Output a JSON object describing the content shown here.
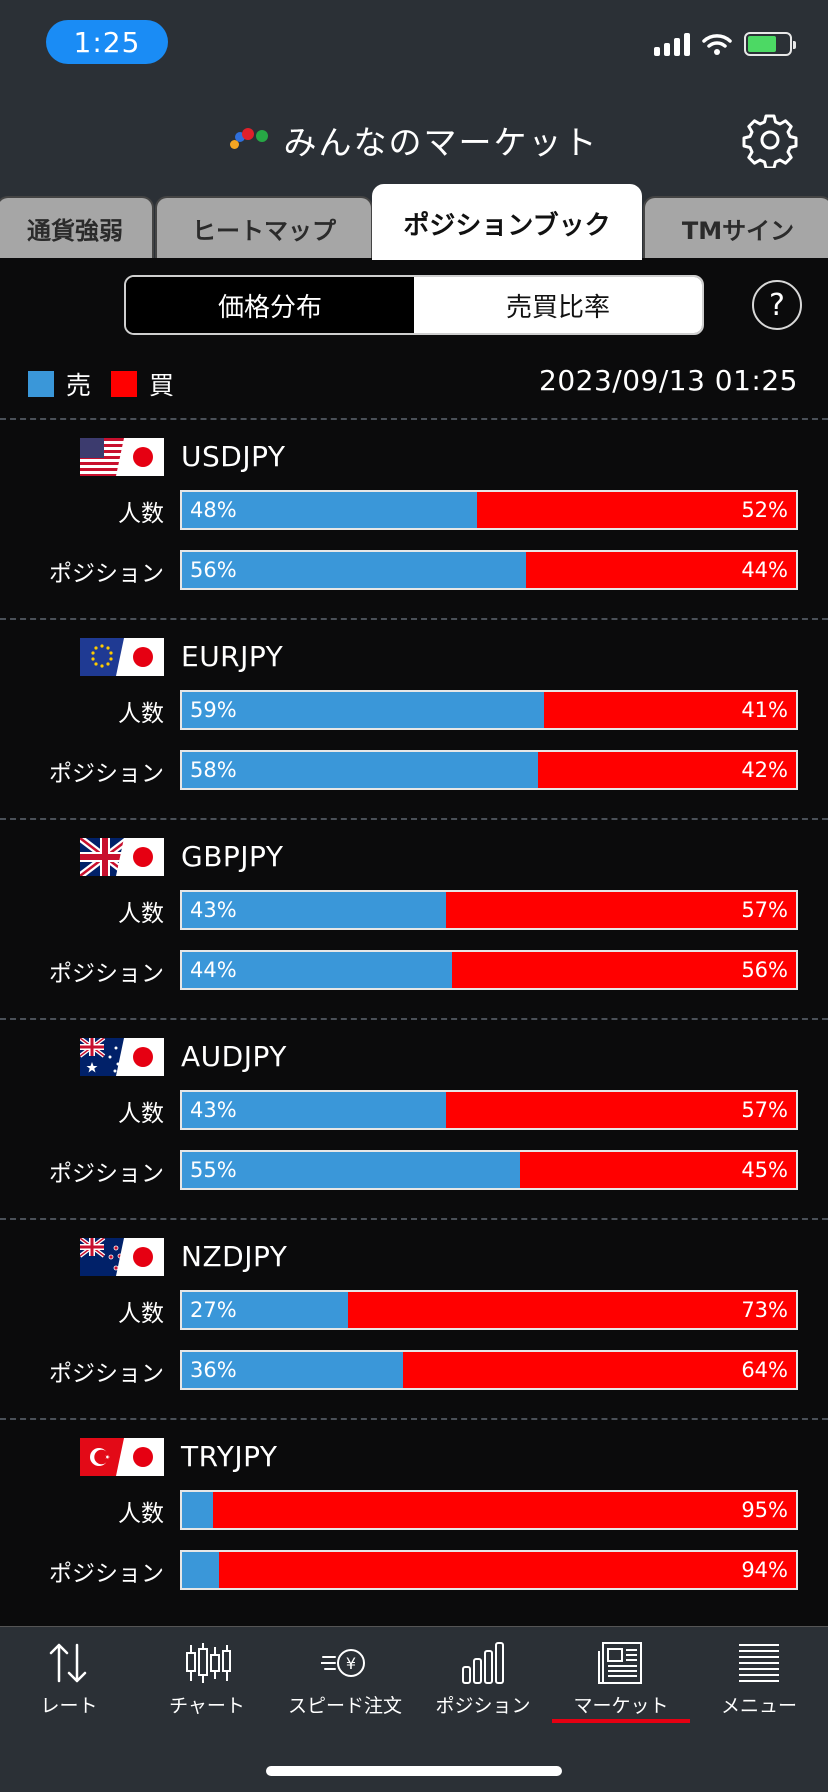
{
  "status_bar": {
    "time": "1:25"
  },
  "header": {
    "title": "みんなのマーケット"
  },
  "tabs": [
    {
      "label": "通貨強弱",
      "active": false
    },
    {
      "label": "ヒートマップ",
      "active": false
    },
    {
      "label": "ポジションブック",
      "active": true
    },
    {
      "label": "TMサイン",
      "active": false
    }
  ],
  "segment": {
    "left": "価格分布",
    "right": "売買比率",
    "selected": "売買比率"
  },
  "help_label": "?",
  "legend": {
    "sell_label": "売",
    "buy_label": "買",
    "sell_color": "#3a97d9",
    "buy_color": "#ff0000"
  },
  "datetime": "2023/09/13 01:25",
  "row_labels": {
    "people": "人数",
    "position": "ポジション"
  },
  "pairs": [
    {
      "name": "USDJPY",
      "people": {
        "sell": 48,
        "buy": 52,
        "sell_text": "48%",
        "buy_text": "52%"
      },
      "position": {
        "sell": 56,
        "buy": 44,
        "sell_text": "56%",
        "buy_text": "44%"
      }
    },
    {
      "name": "EURJPY",
      "people": {
        "sell": 59,
        "buy": 41,
        "sell_text": "59%",
        "buy_text": "41%"
      },
      "position": {
        "sell": 58,
        "buy": 42,
        "sell_text": "58%",
        "buy_text": "42%"
      }
    },
    {
      "name": "GBPJPY",
      "people": {
        "sell": 43,
        "buy": 57,
        "sell_text": "43%",
        "buy_text": "57%"
      },
      "position": {
        "sell": 44,
        "buy": 56,
        "sell_text": "44%",
        "buy_text": "56%"
      }
    },
    {
      "name": "AUDJPY",
      "people": {
        "sell": 43,
        "buy": 57,
        "sell_text": "43%",
        "buy_text": "57%"
      },
      "position": {
        "sell": 55,
        "buy": 45,
        "sell_text": "55%",
        "buy_text": "45%"
      }
    },
    {
      "name": "NZDJPY",
      "people": {
        "sell": 27,
        "buy": 73,
        "sell_text": "27%",
        "buy_text": "73%"
      },
      "position": {
        "sell": 36,
        "buy": 64,
        "sell_text": "36%",
        "buy_text": "64%"
      }
    },
    {
      "name": "TRYJPY",
      "people": {
        "sell": 5,
        "buy": 95,
        "sell_text": "",
        "buy_text": "95%"
      },
      "position": {
        "sell": 6,
        "buy": 94,
        "sell_text": "",
        "buy_text": "94%"
      }
    }
  ],
  "bottom_nav": [
    {
      "label": "レート",
      "icon": "rate-arrows-icon",
      "active": false
    },
    {
      "label": "チャート",
      "icon": "candlestick-icon",
      "active": false
    },
    {
      "label": "スピード注文",
      "icon": "speed-order-yen-icon",
      "active": false
    },
    {
      "label": "ポジション",
      "icon": "position-bars-icon",
      "active": false
    },
    {
      "label": "マーケット",
      "icon": "newspaper-icon",
      "active": true
    },
    {
      "label": "メニュー",
      "icon": "menu-lines-icon",
      "active": false
    }
  ]
}
